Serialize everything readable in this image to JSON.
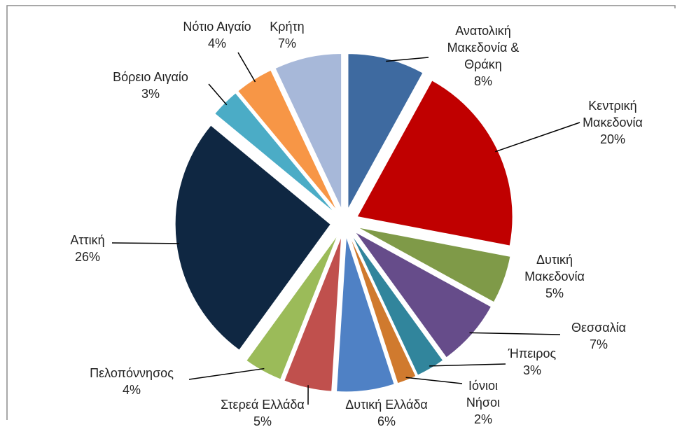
{
  "chart_data": {
    "type": "pie",
    "categories": [
      "Ανατολική Μακεδονία & Θράκη",
      "Κεντρική Μακεδονία",
      "Δυτική Μακεδονία",
      "Θεσσαλία",
      "Ήπειρος",
      "Ιόνιοι Νήσοι",
      "Δυτική Ελλάδα",
      "Στερεά Ελλάδα",
      "Πελοπόννησος",
      "Αττική",
      "Βόρειο Αιγαίο",
      "Νότιο Αιγαίο",
      "Κρήτη"
    ],
    "values": [
      8,
      20,
      5,
      7,
      3,
      2,
      6,
      5,
      4,
      26,
      3,
      4,
      7
    ],
    "value_labels": [
      "8%",
      "20%",
      "5%",
      "7%",
      "3%",
      "2%",
      "6%",
      "5%",
      "4%",
      "26%",
      "3%",
      "4%",
      "7%"
    ],
    "colors": [
      "#3e6aa0",
      "#c00000",
      "#7f9a48",
      "#664c8a",
      "#31859c",
      "#d07a2e",
      "#4f81c5",
      "#c0504d",
      "#9bbb59",
      "#0f2742",
      "#4bacc6",
      "#f79646",
      "#a7b8d9"
    ]
  }
}
